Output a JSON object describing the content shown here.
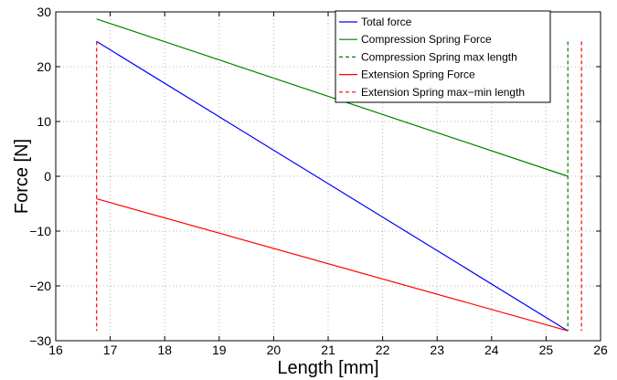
{
  "chart_data": {
    "type": "line",
    "title": "",
    "xlabel": "Length [mm]",
    "ylabel": "Force [N]",
    "xlim": [
      16,
      26
    ],
    "ylim": [
      -30,
      30
    ],
    "xticks": [
      16,
      17,
      18,
      19,
      20,
      21,
      22,
      23,
      24,
      25,
      26
    ],
    "yticks": [
      -30,
      -20,
      -10,
      0,
      10,
      20,
      30
    ],
    "ytick_labels": [
      "−30",
      "−20",
      "−10",
      "0",
      "10",
      "20",
      "30"
    ],
    "grid": true,
    "legend_position": "top-right",
    "series": [
      {
        "name": "Total force",
        "color": "#0000ff",
        "dash": "solid",
        "x": [
          16.75,
          25.4
        ],
        "y": [
          24.6,
          -28.2
        ]
      },
      {
        "name": "Compression Spring Force",
        "color": "#008000",
        "dash": "solid",
        "x": [
          16.75,
          25.4
        ],
        "y": [
          28.7,
          0.0
        ]
      },
      {
        "name": "Compression Spring max length",
        "color": "#008000",
        "dash": "dashed",
        "x": [
          25.4,
          25.4
        ],
        "y": [
          24.6,
          -28.2
        ]
      },
      {
        "name": "Extension Spring Force",
        "color": "#ff0000",
        "dash": "solid",
        "x": [
          16.75,
          25.4
        ],
        "y": [
          -4.1,
          -28.2
        ]
      },
      {
        "name": "Extension Spring max−min length",
        "color": "#ff0000",
        "dash": "dashed",
        "x": [
          16.75,
          16.75
        ],
        "y": [
          24.6,
          -28.2
        ]
      },
      {
        "name": "",
        "color": "#ff0000",
        "dash": "dashed",
        "x": [
          25.65,
          25.65
        ],
        "y": [
          24.6,
          -28.2
        ]
      }
    ]
  }
}
